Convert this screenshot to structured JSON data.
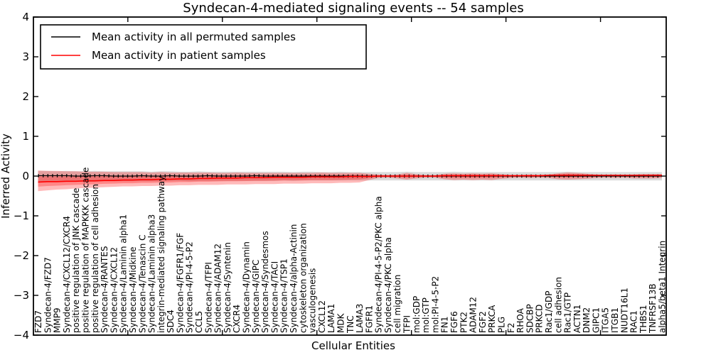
{
  "chart_data": {
    "type": "line",
    "title": "Syndecan-4-mediated signaling events -- 54 samples",
    "xlabel": "Cellular Entities",
    "ylabel": "Inferred Activity",
    "ylim": [
      -4,
      4
    ],
    "grid": false,
    "legend": {
      "position": "upper left",
      "entries": [
        {
          "label": "Mean activity in all permuted samples",
          "color": "#000000"
        },
        {
          "label": "Mean activity in patient samples",
          "color": "#ff0000"
        }
      ]
    },
    "yticks": [
      {
        "v": 4,
        "label": "4"
      },
      {
        "v": 3,
        "label": "3"
      },
      {
        "v": 2,
        "label": "2"
      },
      {
        "v": 1,
        "label": "1"
      },
      {
        "v": 0,
        "label": "0"
      },
      {
        "v": -1,
        "label": "−1"
      },
      {
        "v": -2,
        "label": "−2"
      },
      {
        "v": -3,
        "label": "−3"
      },
      {
        "v": -4,
        "label": "−4"
      }
    ],
    "categories": [
      "FZD7",
      "Syndecan-4/FZD7",
      "MMP9",
      "Syndecan-4/CXCL12/CXCR4",
      "positive regulation of JNK cascade",
      "positive regulation of MAPKKK cascade",
      "positive regulation of cell adhesion",
      "Syndecan-4/RANTES",
      "Syndecan-4/CXCL12",
      "Syndecan-4/Laminin alpha1",
      "Syndecan-4/Midkine",
      "Syndecan-4/Tenascin C",
      "Syndecan-4/Laminin alpha3",
      "integrin-mediated signaling pathway",
      "SDC4",
      "Syndecan-4/FGFR1/FGF",
      "Syndecan-4/PI-4-5-P2",
      "CCL5",
      "Syndecan-4/TFPI",
      "Syndecan-4/ADAM12",
      "Syndecan-4/Syntenin",
      "CXCR4",
      "Syndecan-4/Dynamin",
      "Syndecan-4/GIPC",
      "Syndecan-4/Syndesmos",
      "Syndecan-4/TACI",
      "Syndecan-4/TSP1",
      "Syndecan-4/alpha-Actinin",
      "cytoskeleton organization",
      "vasculogenesis",
      "CXCL12",
      "LAMA1",
      "MDK",
      "TNC",
      "LAMA3",
      "FGFR1",
      "Syndecan-4/PI-4-5-P2/PKC alpha",
      "Syndecan-4/PKC alpha",
      "cell migration",
      "TFPI",
      "mol:GDP",
      "mol:GTP",
      "mol:PI-4-5-P2",
      "FN1",
      "FGF6",
      "PTK2",
      "ADAM12",
      "FGF2",
      "PRKCA",
      "PLG",
      "F2",
      "RHOA",
      "SDCBP",
      "PRKCD",
      "Rac1/GDP",
      "cell adhesion",
      "Rac1/GTP",
      "ACTN1",
      "DNM2",
      "GIPC1",
      "ITGA5",
      "ITGB1",
      "NUDT16L1",
      "RAC1",
      "THBS1",
      "TNFRSF13B",
      "alpha5/beta1 Integrin"
    ],
    "series": [
      {
        "name": "Mean activity in all permuted samples",
        "color": "#000000",
        "values": [
          0.01,
          0.01,
          0.01,
          0.01,
          0.0,
          0.0,
          0.01,
          0.01,
          0.0,
          0.0,
          0.0,
          0.01,
          0.0,
          0.0,
          0.01,
          0.0,
          0.0,
          0.0,
          0.01,
          0.0,
          0.0,
          0.0,
          0.0,
          0.01,
          0.0,
          0.0,
          0.0,
          0.0,
          0.0,
          0.0,
          0.0,
          0.0,
          0.0,
          0.0,
          0.0,
          0.0,
          0.0,
          0.0,
          0.0,
          0.0,
          0.0,
          0.0,
          0.0,
          0.0,
          0.0,
          0.0,
          0.0,
          0.0,
          0.0,
          0.0,
          0.0,
          0.0,
          0.0,
          0.0,
          0.0,
          0.0,
          0.0,
          0.0,
          0.0,
          0.0,
          0.0,
          0.0,
          0.0,
          0.0,
          0.0,
          0.0,
          0.0
        ]
      },
      {
        "name": "Mean activity in patient samples",
        "color": "#ff0000",
        "values": [
          -0.15,
          -0.14,
          -0.14,
          -0.13,
          -0.13,
          -0.12,
          -0.12,
          -0.11,
          -0.11,
          -0.1,
          -0.1,
          -0.09,
          -0.09,
          -0.08,
          -0.08,
          -0.07,
          -0.07,
          -0.06,
          -0.06,
          -0.05,
          -0.05,
          -0.05,
          -0.04,
          -0.04,
          -0.04,
          -0.03,
          -0.03,
          -0.03,
          -0.03,
          -0.02,
          -0.02,
          -0.02,
          -0.02,
          -0.01,
          -0.01,
          -0.01,
          0.0,
          0.0,
          0.0,
          0.0,
          0.0,
          0.0,
          0.0,
          0.01,
          0.01,
          0.01,
          0.01,
          0.01,
          0.01,
          0.01,
          0.01,
          0.01,
          0.01,
          0.01,
          0.02,
          0.02,
          0.02,
          0.02,
          0.02,
          0.02,
          0.02,
          0.02,
          0.02,
          0.02,
          0.02,
          0.02,
          0.02
        ]
      }
    ],
    "bands": [
      {
        "name": "permuted-range",
        "color": "#999999",
        "opacity": 0.35,
        "upper": [
          0.13,
          0.13,
          0.12,
          0.13,
          0.12,
          0.12,
          0.13,
          0.12,
          0.12,
          0.12,
          0.12,
          0.12,
          0.11,
          0.12,
          0.12,
          0.11,
          0.11,
          0.12,
          0.11,
          0.11,
          0.11,
          0.11,
          0.11,
          0.11,
          0.11,
          0.11,
          0.11,
          0.1,
          0.11,
          0.11,
          0.1,
          0.1,
          0.11,
          0.1,
          0.1,
          0.1,
          0.1,
          0.1,
          0.1,
          0.11,
          0.1,
          0.1,
          0.1,
          0.1,
          0.11,
          0.1,
          0.1,
          0.1,
          0.1,
          0.1,
          0.1,
          0.1,
          0.1,
          0.1,
          0.1,
          0.1,
          0.11,
          0.1,
          0.1,
          0.1,
          0.1,
          0.1,
          0.1,
          0.1,
          0.1,
          0.1,
          0.1
        ],
        "lower": [
          -0.15,
          -0.15,
          -0.14,
          -0.14,
          -0.14,
          -0.14,
          -0.14,
          -0.13,
          -0.13,
          -0.13,
          -0.13,
          -0.13,
          -0.13,
          -0.13,
          -0.12,
          -0.12,
          -0.13,
          -0.12,
          -0.12,
          -0.12,
          -0.12,
          -0.12,
          -0.12,
          -0.12,
          -0.12,
          -0.12,
          -0.11,
          -0.12,
          -0.11,
          -0.11,
          -0.11,
          -0.11,
          -0.11,
          -0.11,
          -0.11,
          -0.11,
          -0.11,
          -0.11,
          -0.11,
          -0.11,
          -0.11,
          -0.11,
          -0.11,
          -0.11,
          -0.11,
          -0.11,
          -0.11,
          -0.11,
          -0.11,
          -0.11,
          -0.11,
          -0.11,
          -0.11,
          -0.11,
          -0.11,
          -0.11,
          -0.11,
          -0.11,
          -0.11,
          -0.11,
          -0.11,
          -0.11,
          -0.11,
          -0.11,
          -0.11,
          -0.11,
          -0.11
        ]
      },
      {
        "name": "patient-range",
        "color": "#ff0000",
        "opacity": 0.27,
        "upper": [
          0.14,
          0.13,
          0.13,
          0.12,
          0.12,
          0.11,
          0.11,
          0.11,
          0.1,
          0.1,
          0.1,
          0.1,
          0.09,
          0.1,
          0.09,
          0.09,
          0.09,
          0.09,
          0.09,
          0.08,
          0.08,
          0.09,
          0.08,
          0.08,
          0.08,
          0.08,
          0.08,
          0.08,
          0.08,
          0.08,
          0.09,
          0.08,
          0.08,
          0.08,
          0.08,
          0.06,
          0.04,
          0.03,
          0.04,
          0.08,
          0.05,
          0.03,
          0.03,
          0.06,
          0.07,
          0.06,
          0.07,
          0.06,
          0.07,
          0.05,
          0.03,
          0.03,
          0.04,
          0.03,
          0.04,
          0.07,
          0.09,
          0.08,
          0.06,
          0.04,
          0.03,
          0.04,
          0.03,
          0.04,
          0.05,
          0.05,
          0.05
        ],
        "lower": [
          -0.38,
          -0.36,
          -0.34,
          -0.33,
          -0.31,
          -0.3,
          -0.29,
          -0.28,
          -0.27,
          -0.26,
          -0.26,
          -0.25,
          -0.25,
          -0.24,
          -0.24,
          -0.23,
          -0.23,
          -0.22,
          -0.22,
          -0.22,
          -0.21,
          -0.21,
          -0.21,
          -0.2,
          -0.2,
          -0.2,
          -0.19,
          -0.19,
          -0.19,
          -0.18,
          -0.18,
          -0.18,
          -0.17,
          -0.17,
          -0.16,
          -0.1,
          -0.05,
          -0.04,
          -0.06,
          -0.09,
          -0.06,
          -0.04,
          -0.04,
          -0.08,
          -0.1,
          -0.09,
          -0.1,
          -0.09,
          -0.1,
          -0.07,
          -0.05,
          -0.04,
          -0.05,
          -0.04,
          -0.05,
          -0.08,
          -0.09,
          -0.08,
          -0.07,
          -0.05,
          -0.04,
          -0.05,
          -0.04,
          -0.06,
          -0.06,
          -0.06,
          -0.05
        ]
      }
    ]
  }
}
